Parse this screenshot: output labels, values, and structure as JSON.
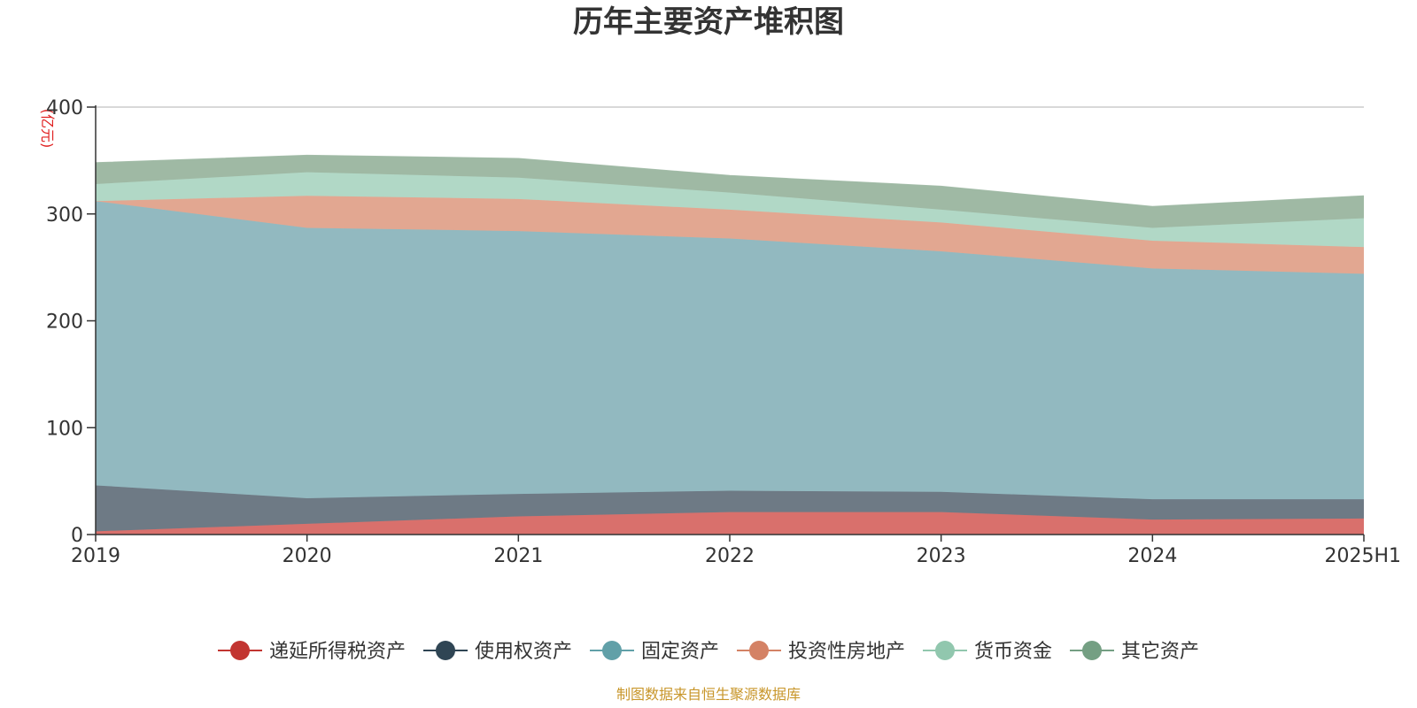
{
  "chart_data": {
    "type": "area",
    "stacked": true,
    "title": "历年主要资产堆积图",
    "unit_label": "(亿元)",
    "categories": [
      "2019",
      "2020",
      "2021",
      "2022",
      "2023",
      "2024",
      "2025H1"
    ],
    "ylim": [
      0,
      400
    ],
    "yticks": [
      0,
      100,
      200,
      300,
      400
    ],
    "grid": true,
    "legend_position": "bottom",
    "series": [
      {
        "name": "递延所得税资产",
        "color": "#d9706c",
        "marker": "#c23531",
        "values": [
          3,
          10,
          17,
          21,
          21,
          14,
          15
        ]
      },
      {
        "name": "使用权资产",
        "color": "#6e7a85",
        "marker": "#2f4554",
        "values": [
          43,
          24,
          21,
          20,
          19,
          19,
          18
        ]
      },
      {
        "name": "固定资产",
        "color": "#92b9c0",
        "marker": "#61a0a8",
        "values": [
          266,
          253,
          246,
          236,
          225,
          216,
          211
        ]
      },
      {
        "name": "投资性房地产",
        "color": "#e2a791",
        "marker": "#d48265",
        "values": [
          0,
          30,
          30,
          27,
          27,
          26,
          25
        ]
      },
      {
        "name": "货币资金",
        "color": "#b1d8c6",
        "marker": "#91c7ae",
        "values": [
          16,
          22,
          20,
          16,
          12,
          12,
          27
        ]
      },
      {
        "name": "其它资产",
        "color": "#9fb9a4",
        "marker": "#749f83",
        "values": [
          20,
          16,
          18,
          16,
          22,
          20,
          21
        ]
      }
    ],
    "source_note": "制图数据来自恒生聚源数据库"
  }
}
